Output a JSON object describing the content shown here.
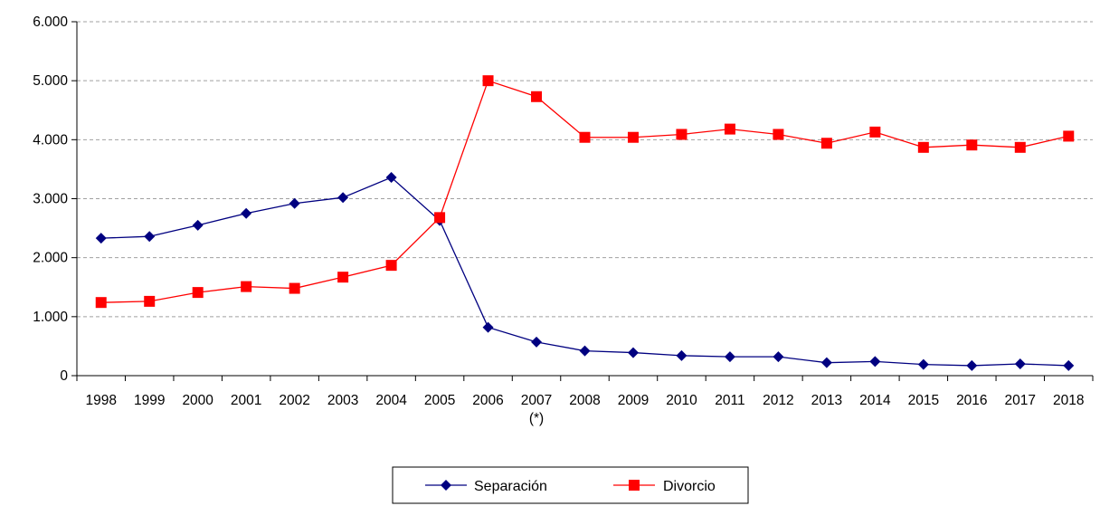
{
  "chart_data": {
    "type": "line",
    "title": "",
    "xlabel": "",
    "ylabel": "",
    "categories": [
      "1998",
      "1999",
      "2000",
      "2001",
      "2002",
      "2003",
      "2004",
      "2005",
      "2006",
      "2007",
      "2008",
      "2009",
      "2010",
      "2011",
      "2012",
      "2013",
      "2014",
      "2015",
      "2016",
      "2017",
      "2018"
    ],
    "category_notes": {
      "2007": "(*)"
    },
    "ylim": [
      0,
      6000
    ],
    "yticks": [
      0,
      1000,
      2000,
      3000,
      4000,
      5000,
      6000
    ],
    "ytick_labels": [
      "0",
      "1.000",
      "2.000",
      "3.000",
      "4.000",
      "5.000",
      "6.000"
    ],
    "grid": "horizontal dashed",
    "legend_position": "bottom-center",
    "series": [
      {
        "name": "Separación",
        "color": "#000080",
        "marker": "diamond",
        "values": [
          2330,
          2360,
          2550,
          2750,
          2920,
          3020,
          3360,
          2630,
          820,
          570,
          420,
          390,
          340,
          320,
          320,
          220,
          240,
          190,
          170,
          200,
          170
        ]
      },
      {
        "name": "Divorcio",
        "color": "#ff0000",
        "marker": "square",
        "values": [
          1240,
          1260,
          1410,
          1510,
          1480,
          1670,
          1870,
          2680,
          5000,
          4730,
          4040,
          4040,
          4090,
          4180,
          4090,
          3940,
          4130,
          3870,
          3910,
          3870,
          4060
        ]
      }
    ]
  }
}
